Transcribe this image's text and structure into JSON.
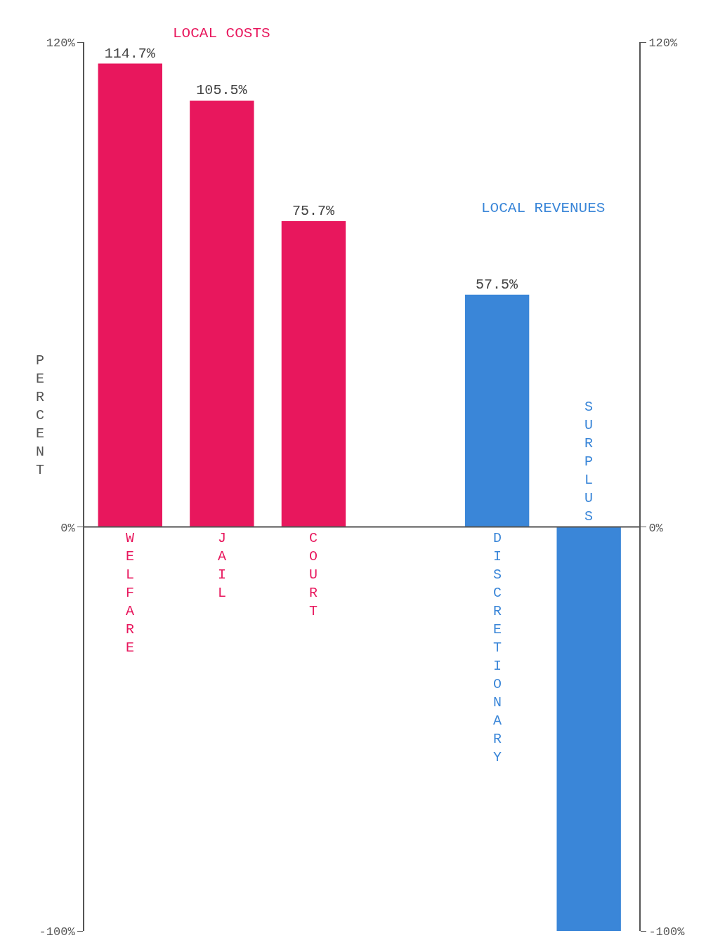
{
  "chart_data": {
    "type": "bar",
    "ylabel": "PERCENT",
    "categories": [
      "WELFARE",
      "JAIL",
      "COURT",
      null,
      "DISCRETIONARY",
      "SURPLUS"
    ],
    "series": [
      {
        "name": "LOCAL COSTS",
        "color": "#e8175d",
        "values": [
          114.7,
          105.5,
          75.7,
          null,
          null,
          null
        ],
        "value_labels": [
          "114.7%",
          "105.5%",
          "75.7%",
          null,
          null,
          null
        ]
      },
      {
        "name": "LOCAL REVENUES",
        "color": "#3a86d8",
        "values": [
          null,
          null,
          null,
          null,
          57.5,
          -100
        ],
        "value_labels": [
          null,
          null,
          null,
          null,
          "57.5%",
          null
        ]
      }
    ],
    "ylim": [
      -100,
      120
    ],
    "yticks": [
      {
        "value": 120,
        "label": "120%"
      },
      {
        "value": 0,
        "label": "0%"
      },
      {
        "value": -100,
        "label": "-100%"
      }
    ],
    "y2lim": [
      -100,
      120
    ],
    "y2ticks": [
      {
        "value": 120,
        "label": "120%"
      },
      {
        "value": 0,
        "label": "0%"
      },
      {
        "value": -100,
        "label": "-100%"
      }
    ],
    "grid": false,
    "legend": false
  }
}
